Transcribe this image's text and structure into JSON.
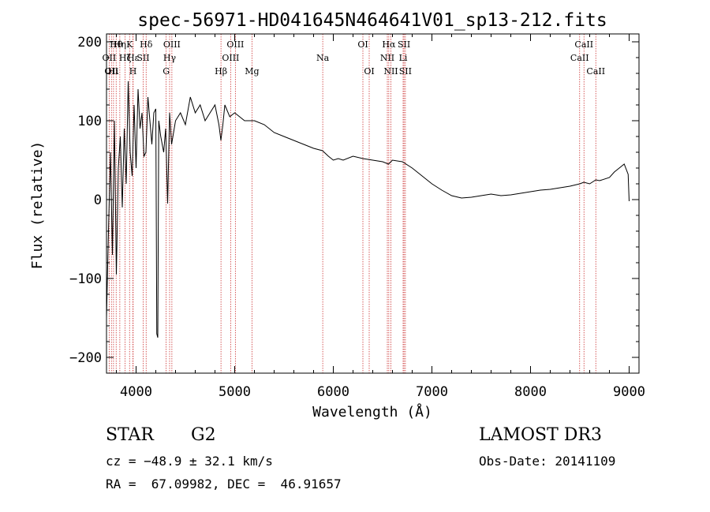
{
  "chart_data": {
    "type": "line",
    "title": "spec-56971-HD041645N464641V01_sp13-212.fits",
    "xlabel": "Wavelength (Å)",
    "ylabel": "Flux (relative)",
    "xlim": [
      3700,
      9100
    ],
    "ylim": [
      -220,
      210
    ],
    "xticks": [
      4000,
      5000,
      6000,
      7000,
      8000,
      9000
    ],
    "yticks": [
      -200,
      -100,
      0,
      100,
      200
    ],
    "xtick_labels": [
      "4000",
      "5000",
      "6000",
      "7000",
      "8000",
      "9000"
    ],
    "ytick_labels": [
      "−200",
      "−100",
      "0",
      "100",
      "200"
    ],
    "series": [
      {
        "name": "spectrum",
        "x": [
          3700,
          3720,
          3740,
          3760,
          3780,
          3800,
          3820,
          3840,
          3860,
          3880,
          3900,
          3920,
          3940,
          3960,
          3980,
          4000,
          4020,
          4040,
          4060,
          4080,
          4100,
          4120,
          4140,
          4160,
          4180,
          4200,
          4210,
          4220,
          4230,
          4250,
          4280,
          4300,
          4320,
          4340,
          4360,
          4400,
          4450,
          4500,
          4550,
          4600,
          4650,
          4700,
          4750,
          4800,
          4840,
          4860,
          4880,
          4900,
          4950,
          5000,
          5100,
          5200,
          5300,
          5400,
          5500,
          5600,
          5700,
          5800,
          5890,
          5950,
          6000,
          6050,
          6100,
          6200,
          6300,
          6400,
          6500,
          6560,
          6600,
          6700,
          6800,
          6900,
          7000,
          7100,
          7200,
          7300,
          7400,
          7500,
          7600,
          7700,
          7800,
          7900,
          8000,
          8100,
          8200,
          8300,
          8400,
          8500,
          8540,
          8600,
          8662,
          8700,
          8800,
          8850,
          8900,
          8950,
          8990,
          9000
        ],
        "values": [
          -150,
          -40,
          60,
          -70,
          100,
          -95,
          40,
          80,
          -10,
          90,
          20,
          150,
          60,
          30,
          120,
          40,
          140,
          90,
          110,
          55,
          60,
          130,
          100,
          70,
          110,
          115,
          -170,
          -175,
          100,
          80,
          60,
          90,
          -5,
          110,
          70,
          100,
          110,
          95,
          130,
          110,
          120,
          100,
          110,
          120,
          95,
          75,
          95,
          120,
          105,
          110,
          100,
          100,
          95,
          85,
          80,
          75,
          70,
          65,
          62,
          55,
          50,
          52,
          50,
          55,
          52,
          50,
          48,
          45,
          50,
          48,
          40,
          30,
          20,
          12,
          5,
          2,
          3,
          5,
          7,
          5,
          6,
          8,
          10,
          12,
          13,
          15,
          17,
          20,
          22,
          20,
          25,
          24,
          28,
          35,
          40,
          45,
          32,
          -2
        ]
      }
    ],
    "spectral_lines": [
      {
        "wavelength": 3798,
        "label": "Hθ",
        "row": 0
      },
      {
        "wavelength": 3835,
        "label": "Hη",
        "row": 0
      },
      {
        "wavelength": 3934,
        "label": "K",
        "row": 0
      },
      {
        "wavelength": 4102,
        "label": "Hδ",
        "row": 0
      },
      {
        "wavelength": 4363,
        "label": "OIII",
        "row": 0
      },
      {
        "wavelength": 5007,
        "label": "OIII",
        "row": 0
      },
      {
        "wavelength": 6300,
        "label": "OI",
        "row": 0
      },
      {
        "wavelength": 6563,
        "label": "Hα",
        "row": 0
      },
      {
        "wavelength": 6717,
        "label": "SII",
        "row": 0
      },
      {
        "wavelength": 8542,
        "label": "CaII",
        "row": 0
      },
      {
        "wavelength": 3727,
        "label": "OII",
        "row": 1
      },
      {
        "wavelength": 3889,
        "label": "Hζ",
        "row": 1
      },
      {
        "wavelength": 3970,
        "label": "Hε",
        "row": 1
      },
      {
        "wavelength": 4072,
        "label": "SII",
        "row": 1
      },
      {
        "wavelength": 4340,
        "label": "Hγ",
        "row": 1
      },
      {
        "wavelength": 4959,
        "label": "OIII",
        "row": 1
      },
      {
        "wavelength": 5893,
        "label": "Na",
        "row": 1
      },
      {
        "wavelength": 6548,
        "label": "NII",
        "row": 1
      },
      {
        "wavelength": 6708,
        "label": "Li",
        "row": 1
      },
      {
        "wavelength": 8498,
        "label": "CaII",
        "row": 1
      },
      {
        "wavelength": 3750,
        "label": "OII",
        "row": 2
      },
      {
        "wavelength": 3771,
        "label": "Hι",
        "row": 2
      },
      {
        "wavelength": 3968,
        "label": "H",
        "row": 2
      },
      {
        "wavelength": 4305,
        "label": "G",
        "row": 2
      },
      {
        "wavelength": 4861,
        "label": "Hβ",
        "row": 2
      },
      {
        "wavelength": 5175,
        "label": "Mg",
        "row": 2
      },
      {
        "wavelength": 6364,
        "label": "OI",
        "row": 2
      },
      {
        "wavelength": 6584,
        "label": "NII",
        "row": 2
      },
      {
        "wavelength": 6731,
        "label": "SII",
        "row": 2
      },
      {
        "wavelength": 8662,
        "label": "CaII",
        "row": 2
      }
    ],
    "line_color": "#000000",
    "marker_color": "#cc3333"
  },
  "info": {
    "object_class": "STAR",
    "subclass": "G2",
    "survey": "LAMOST DR3",
    "redshift": "cz = −48.9 ± 32.1 km/s",
    "obs_date": "Obs-Date: 20141109",
    "coords": "RA =  67.09982, DEC =  46.91657"
  }
}
